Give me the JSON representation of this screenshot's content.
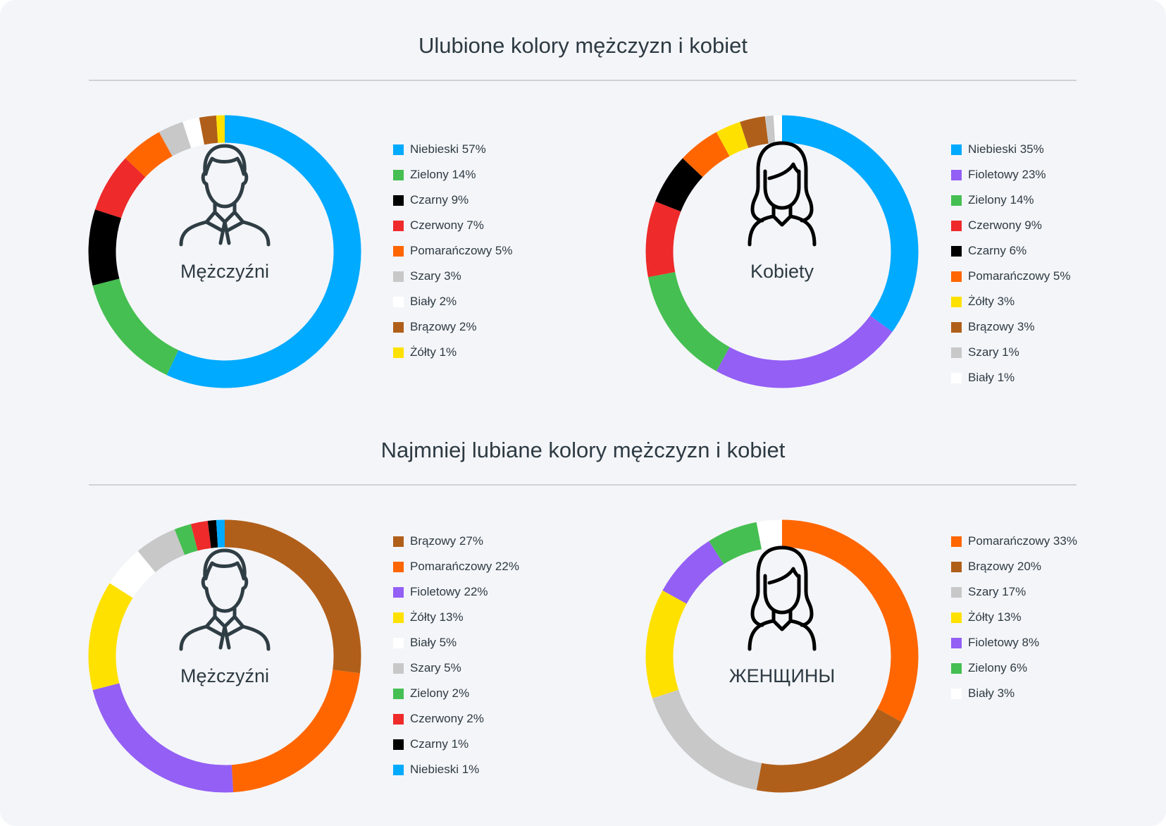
{
  "sections": [
    {
      "title": "Ulubione kolory mężczyzn i kobiet"
    },
    {
      "title": "Najmniej lubiane kolory mężczyzn i kobiet"
    }
  ],
  "colors": {
    "Niebieski": "#00aaff",
    "Zielony": "#45bf51",
    "Czarny": "#000000",
    "Czerwony": "#ee2a2a",
    "Pomarańczowy": "#ff6600",
    "Szary": "#c8c8c8",
    "Biały": "#ffffff",
    "Brązowy": "#b05f1a",
    "Żółty": "#ffe100",
    "Fioletowy": "#935ff5"
  },
  "chart_data": [
    {
      "type": "pie",
      "title": "Mężczyźni",
      "icon": "man-icon",
      "categories": [
        "Niebieski",
        "Zielony",
        "Czarny",
        "Czerwony",
        "Pomarańczowy",
        "Szary",
        "Biały",
        "Brązowy",
        "Żółty"
      ],
      "values": [
        57,
        14,
        9,
        7,
        5,
        3,
        2,
        2,
        1
      ],
      "labels": [
        "Niebieski 57%",
        "Zielony 14%",
        "Czarny 9%",
        "Czerwony 7%",
        "Pomarańczowy 5%",
        "Szary 3%",
        "Biały 2%",
        "Brązowy 2%",
        "Żółty 1%"
      ],
      "legend": "right"
    },
    {
      "type": "pie",
      "title": "Kobiety",
      "icon": "woman-icon",
      "categories": [
        "Niebieski",
        "Fioletowy",
        "Zielony",
        "Czerwony",
        "Czarny",
        "Pomarańczowy",
        "Żółty",
        "Brązowy",
        "Szary",
        "Biały"
      ],
      "values": [
        35,
        23,
        14,
        9,
        6,
        5,
        3,
        3,
        1,
        1
      ],
      "labels": [
        "Niebieski 35%",
        "Fioletowy 23%",
        "Zielony 14%",
        "Czerwony 9%",
        "Czarny 6%",
        "Pomarańczowy 5%",
        "Żółty 3%",
        "Brązowy 3%",
        "Szary 1%",
        "Biały 1%"
      ],
      "legend": "right"
    },
    {
      "type": "pie",
      "title": "Mężczyźni",
      "icon": "man-icon",
      "categories": [
        "Brązowy",
        "Pomarańczowy",
        "Fioletowy",
        "Żółty",
        "Biały",
        "Szary",
        "Zielony",
        "Czerwony",
        "Czarny",
        "Niebieski"
      ],
      "values": [
        27,
        22,
        22,
        13,
        5,
        5,
        2,
        2,
        1,
        1
      ],
      "labels": [
        "Brązowy 27%",
        "Pomarańczowy 22%",
        "Fioletowy 22%",
        "Żółty 13%",
        "Biały 5%",
        "Szary 5%",
        "Zielony 2%",
        "Czerwony 2%",
        "Czarny 1%",
        "Niebieski 1%"
      ],
      "legend": "right"
    },
    {
      "type": "pie",
      "title": "ЖЕНЩИНЫ",
      "icon": "woman-icon",
      "categories": [
        "Pomarańczowy",
        "Brązowy",
        "Szary",
        "Żółty",
        "Fioletowy",
        "Zielony",
        "Biały"
      ],
      "values": [
        33,
        20,
        17,
        13,
        8,
        6,
        3
      ],
      "labels": [
        "Pomarańczowy 33%",
        "Brązowy 20%",
        "Szary 17%",
        "Żółty 13%",
        "Fioletowy 8%",
        "Zielony 6%",
        "Biały 3%"
      ],
      "legend": "right"
    }
  ]
}
